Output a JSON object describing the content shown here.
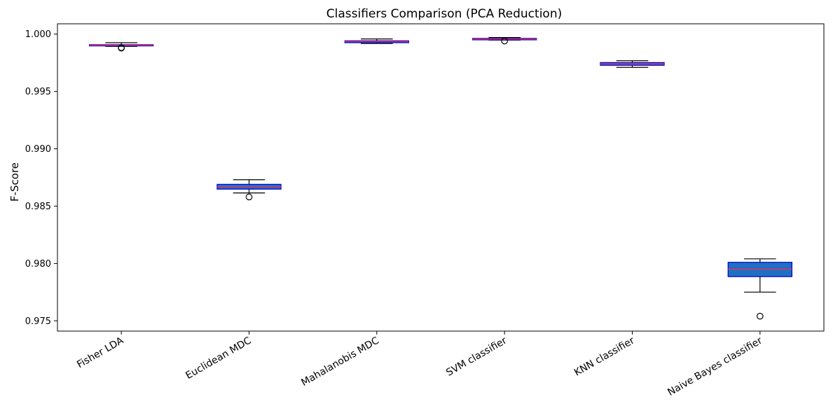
{
  "chart_data": {
    "type": "boxplot",
    "title": "Classifiers Comparison (PCA Reduction)",
    "xlabel": "",
    "ylabel": "F-Score",
    "ylim": [
      0.9741,
      1.0009
    ],
    "yticks": [
      0.975,
      0.98,
      0.985,
      0.99,
      0.995,
      1.0
    ],
    "ytick_labels": [
      "0.975",
      "0.980",
      "0.985",
      "0.990",
      "0.995",
      "1.000"
    ],
    "categories": [
      "Fisher LDA",
      "Euclidean MDC",
      "Mahalanobis MDC",
      "SVM classifier",
      "KNN classifier",
      "Naive Bayes classifier"
    ],
    "boxes": [
      {
        "whisker_low": 0.99893,
        "q1": 0.99897,
        "median": 0.99903,
        "q3": 0.99908,
        "whisker_high": 0.99925,
        "outliers": [
          0.99882,
          0.99878
        ]
      },
      {
        "whisker_low": 0.98615,
        "q1": 0.98648,
        "median": 0.98668,
        "q3": 0.9869,
        "whisker_high": 0.9873,
        "outliers": [
          0.9858
        ]
      },
      {
        "whisker_low": 0.99918,
        "q1": 0.99925,
        "median": 0.99935,
        "q3": 0.99942,
        "whisker_high": 0.99958,
        "outliers": []
      },
      {
        "whisker_low": 0.99948,
        "q1": 0.9995,
        "median": 0.99957,
        "q3": 0.99963,
        "whisker_high": 0.9997,
        "outliers": [
          0.9994
        ]
      },
      {
        "whisker_low": 0.9971,
        "q1": 0.99728,
        "median": 0.9974,
        "q3": 0.99752,
        "whisker_high": 0.99768,
        "outliers": []
      },
      {
        "whisker_low": 0.9775,
        "q1": 0.97885,
        "median": 0.9795,
        "q3": 0.9801,
        "whisker_high": 0.9804,
        "outliers": [
          0.9754
        ]
      }
    ],
    "box_fill": "#1f6fc4",
    "box_edge": "#0000cc",
    "median_color": "#e0305a",
    "whisker_color": "#000000",
    "grid": false,
    "legend": "none"
  }
}
